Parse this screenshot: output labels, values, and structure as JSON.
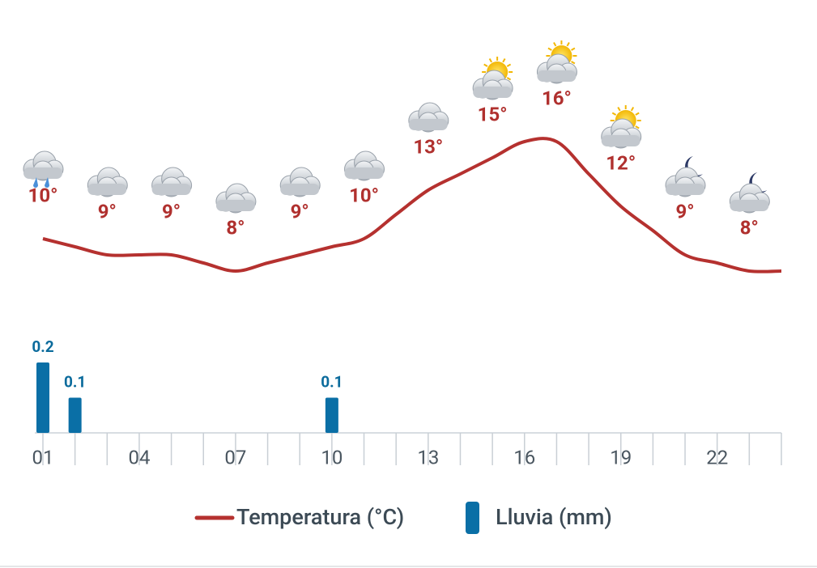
{
  "chart_data": {
    "type": "line",
    "x": [
      1,
      2,
      3,
      4,
      5,
      6,
      7,
      8,
      9,
      10,
      11,
      12,
      13,
      14,
      15,
      16,
      17,
      18,
      19,
      20,
      21,
      22,
      23,
      24
    ],
    "xlim": [
      1,
      24
    ],
    "xticks": [
      {
        "value": 1,
        "label": "01"
      },
      {
        "value": 4,
        "label": "04"
      },
      {
        "value": 7,
        "label": "07"
      },
      {
        "value": 10,
        "label": "10"
      },
      {
        "value": 13,
        "label": "13"
      },
      {
        "value": 16,
        "label": "16"
      },
      {
        "value": 19,
        "label": "19"
      },
      {
        "value": 22,
        "label": "22"
      }
    ],
    "ylim": [
      5,
      23
    ],
    "y2lim": [
      0,
      0.2
    ],
    "icons": [
      "rain",
      null,
      "cloud",
      null,
      "cloud",
      null,
      "cloud",
      null,
      "cloud",
      null,
      "cloud",
      null,
      "cloud",
      null,
      "sun-cloud",
      null,
      "sun-cloud",
      null,
      "sun-cloud",
      null,
      "moon-cloud",
      null,
      "moon-cloud",
      null
    ],
    "series": [
      {
        "name": "Temperatura (°C)",
        "type": "line",
        "color": "#b5312f",
        "values": [
          10,
          9.5,
          9,
          9,
          9,
          8.5,
          8,
          8.5,
          9,
          9.5,
          10,
          11.5,
          13,
          14,
          15,
          16,
          16,
          14,
          12,
          10.5,
          9,
          8.5,
          8,
          8
        ],
        "value_labels": [
          "10°",
          null,
          "9°",
          null,
          "9°",
          null,
          "8°",
          null,
          "9°",
          null,
          "10°",
          null,
          "13°",
          null,
          "15°",
          null,
          "16°",
          null,
          "12°",
          null,
          "9°",
          null,
          "8°",
          null
        ]
      },
      {
        "name": "Lluvia (mm)",
        "type": "bar",
        "axis": "y2",
        "color": "#0a6fa6",
        "values": [
          0.2,
          0.1,
          0,
          0,
          0,
          0,
          0,
          0,
          0,
          0.1,
          0,
          0,
          0,
          0,
          0,
          0,
          0,
          0,
          0,
          0,
          0,
          0,
          0,
          0
        ]
      }
    ]
  }
}
